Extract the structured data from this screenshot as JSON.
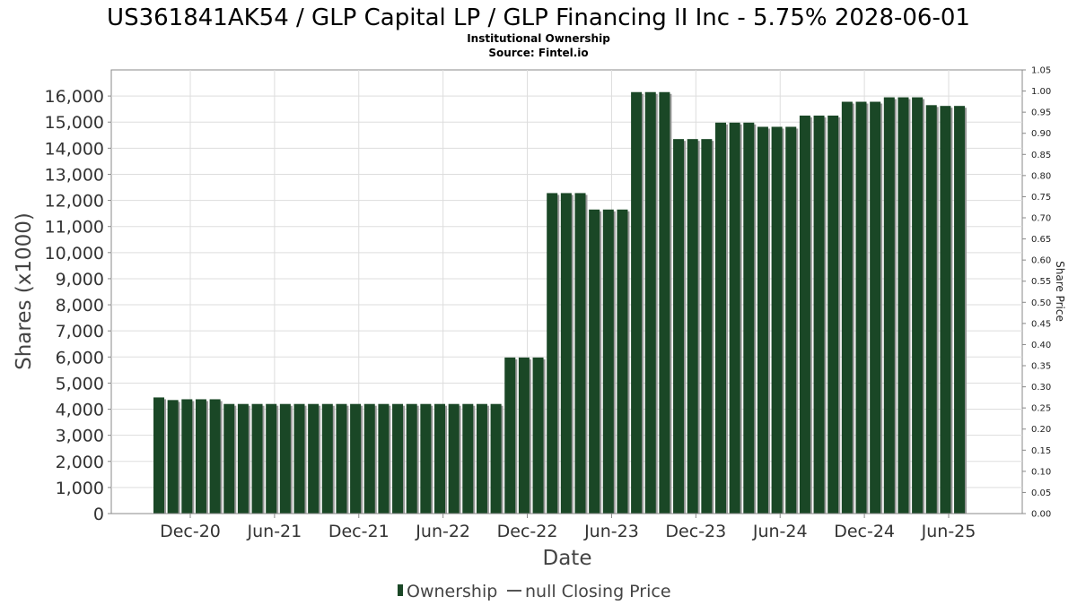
{
  "chart_data": {
    "type": "bar",
    "title": "US361841AK54 / GLP Capital LP / GLP Financing II Inc - 5.75% 2028-06-01",
    "subtitle": "Institutional Ownership",
    "source": "Source: Fintel.io",
    "xlabel": "Date",
    "ylabel": "Shares (x1000)",
    "y2label": "Share Price",
    "ylim": [
      0,
      17000
    ],
    "y2lim": [
      0,
      1.05
    ],
    "y_ticks": [
      "0",
      "1,000",
      "2,000",
      "3,000",
      "4,000",
      "5,000",
      "6,000",
      "7,000",
      "8,000",
      "9,000",
      "10,000",
      "11,000",
      "12,000",
      "13,000",
      "14,000",
      "15,000",
      "16,000"
    ],
    "y2_ticks": [
      "0.00",
      "0.05",
      "0.10",
      "0.15",
      "0.20",
      "0.25",
      "0.30",
      "0.35",
      "0.40",
      "0.45",
      "0.50",
      "0.55",
      "0.60",
      "0.65",
      "0.70",
      "0.75",
      "0.80",
      "0.85",
      "0.90",
      "0.95",
      "1.00",
      "1.05"
    ],
    "x_ticks": [
      "Dec-20",
      "Jun-21",
      "Dec-21",
      "Jun-22",
      "Dec-22",
      "Jun-23",
      "Dec-23",
      "Jun-24",
      "Dec-24",
      "Jun-25"
    ],
    "grid": true,
    "bar_color": "#1a4726",
    "series": [
      {
        "name": "Ownership",
        "values": [
          4450,
          4350,
          4380,
          4380,
          4380,
          4200,
          4200,
          4200,
          4200,
          4200,
          4200,
          4200,
          4200,
          4200,
          4200,
          4200,
          4200,
          4200,
          4200,
          4200,
          4200,
          4200,
          4200,
          4200,
          4200,
          5980,
          5980,
          5980,
          12280,
          12280,
          12280,
          11650,
          11650,
          11650,
          16150,
          16150,
          16150,
          14350,
          14350,
          14350,
          14980,
          14980,
          14980,
          14820,
          14820,
          14820,
          15250,
          15250,
          15250,
          15780,
          15780,
          15780,
          15950,
          15950,
          15950,
          15650,
          15620,
          15620
        ]
      }
    ],
    "legend": [
      {
        "label": "Ownership",
        "marker": "bar",
        "color": "#1a4726"
      },
      {
        "label": "null Closing Price",
        "marker": "line",
        "color": "#555555"
      }
    ],
    "legend_position": "bottom-center"
  }
}
